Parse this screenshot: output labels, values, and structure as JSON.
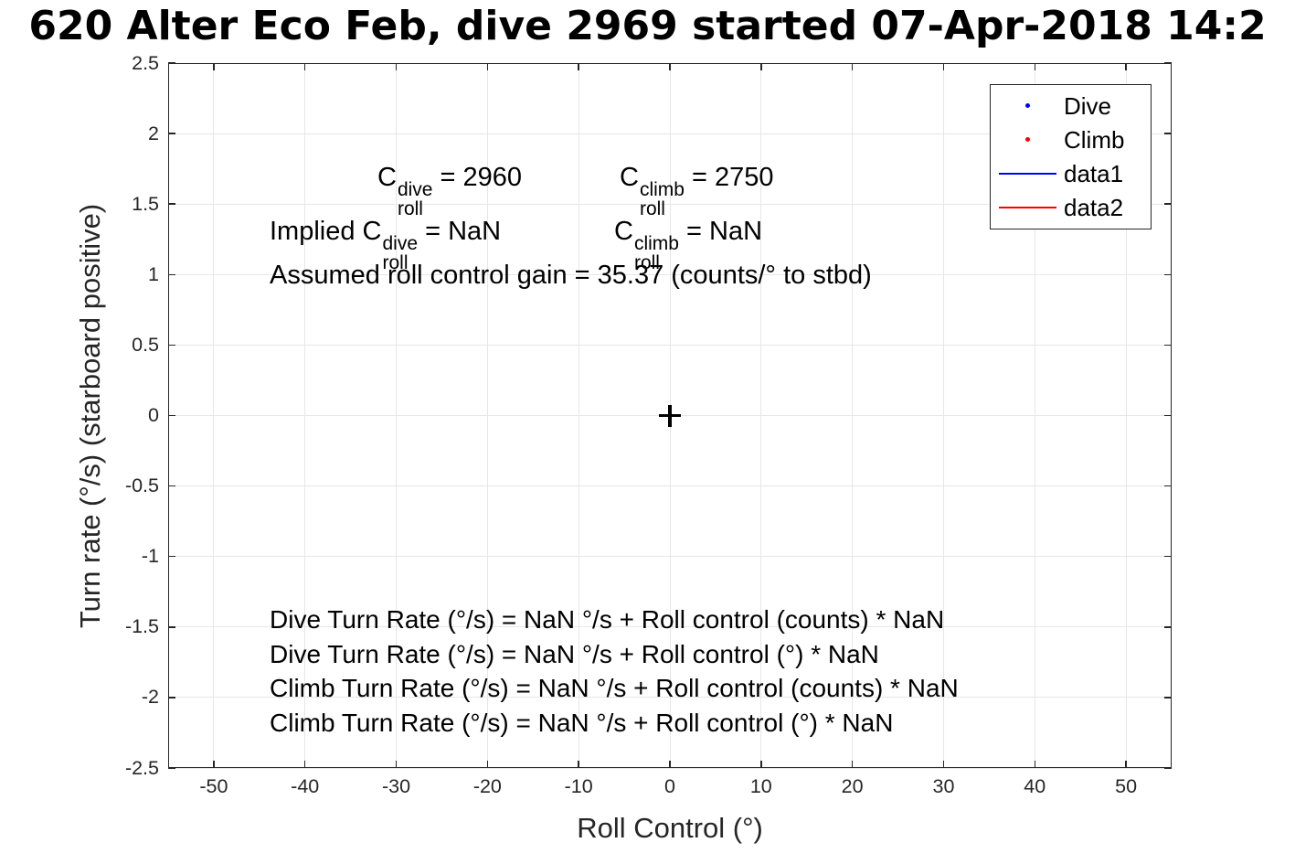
{
  "figure": {
    "title": "620 Alter Eco Feb, dive 2969 started 07-Apr-2018 14:2"
  },
  "colors": {
    "axis": "#262626",
    "grid": "#e6e6e6",
    "dive": "#0000ff",
    "climb": "#ff0000",
    "data1": "#0000ff",
    "data2": "#ff0000",
    "origin_marker": "#000000"
  },
  "chart_data": {
    "type": "scatter",
    "title": "620 Alter Eco Feb, dive 2969 started 07-Apr-2018 14:2",
    "xlabel": "Roll Control (°)",
    "ylabel": "Turn rate (°/s) (starboard positive)",
    "xlim": [
      -55,
      55
    ],
    "ylim": [
      -2.5,
      2.5
    ],
    "x_ticks": [
      -50,
      -40,
      -30,
      -20,
      -10,
      0,
      10,
      20,
      30,
      40,
      50
    ],
    "y_ticks": [
      -2.5,
      -2,
      -1.5,
      -1,
      -0.5,
      0,
      0.5,
      1,
      1.5,
      2,
      2.5
    ],
    "grid": true,
    "legend": {
      "position": "northeast",
      "entries": [
        {
          "label": "Dive",
          "type": "marker",
          "color": "#0000ff"
        },
        {
          "label": "Climb",
          "type": "marker",
          "color": "#ff0000"
        },
        {
          "label": "data1",
          "type": "line",
          "color": "#0000ff"
        },
        {
          "label": "data2",
          "type": "line",
          "color": "#ff0000"
        }
      ]
    },
    "series": [
      {
        "name": "Dive",
        "type": "scatter",
        "marker": "point",
        "color": "#0000ff",
        "points": []
      },
      {
        "name": "Climb",
        "type": "scatter",
        "marker": "point",
        "color": "#ff0000",
        "points": []
      },
      {
        "name": "origin_marker",
        "type": "scatter",
        "marker": "+",
        "color": "#000000",
        "points": [
          [
            0,
            0
          ]
        ]
      }
    ],
    "annotations": {
      "coefficients": {
        "dive": {
          "pre": "",
          "base": "C",
          "sup": "dive",
          "sub": "roll",
          "post": " = 2960"
        },
        "climb": {
          "pre": "",
          "base": "C",
          "sup": "climb",
          "sub": "roll",
          "post": " = 2750"
        }
      },
      "implied": {
        "dive": {
          "pre": "Implied ",
          "base": "C",
          "sup": "dive",
          "sub": "roll",
          "post": " = NaN"
        },
        "climb": {
          "pre": "",
          "base": "C",
          "sup": "climb",
          "sub": "roll",
          "post": " = NaN"
        }
      },
      "gain": "Assumed roll control gain = 35.37 (counts/° to stbd)",
      "fit_lines": [
        "Dive Turn Rate (°/s) = NaN °/s + Roll control (counts) * NaN",
        "Dive Turn Rate (°/s) = NaN °/s + Roll control (°) * NaN",
        "Climb Turn Rate (°/s) = NaN °/s + Roll control (counts) * NaN",
        "Climb Turn Rate (°/s) = NaN °/s + Roll control (°) * NaN"
      ]
    }
  }
}
